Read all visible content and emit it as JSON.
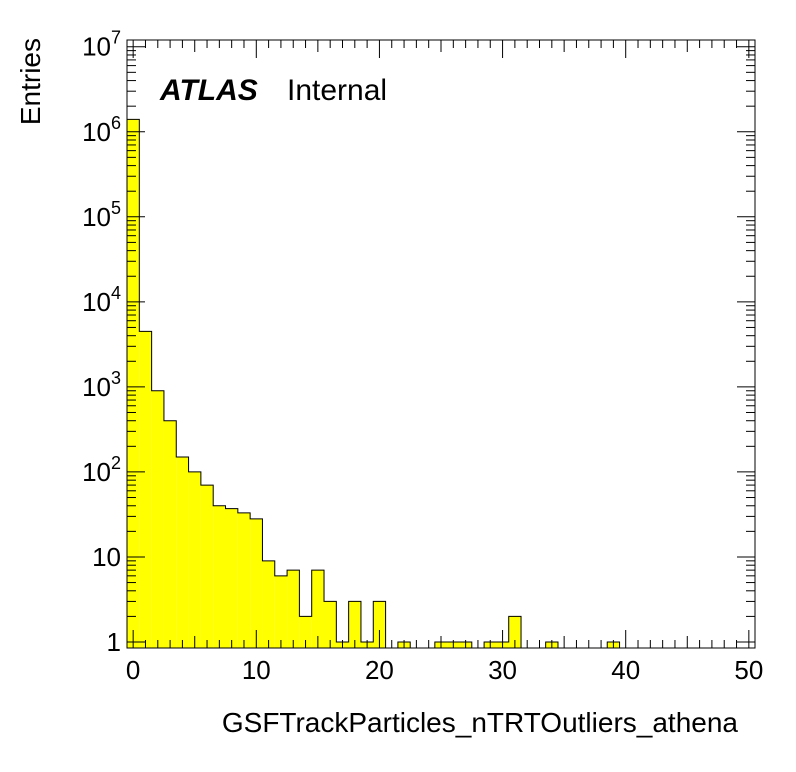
{
  "chart_data": {
    "type": "bar",
    "style": "histogram",
    "xlabel": "GSFTrackParticles_nTRTOutliers_athena",
    "ylabel": "Entries",
    "xlim": [
      -0.5,
      50.5
    ],
    "ylim": [
      0.85,
      12000000
    ],
    "y_scale": "log",
    "grid": false,
    "legend": "none",
    "fill_color": "#ffff00",
    "line_color": "#000000",
    "labels": {
      "experiment": "ATLAS",
      "status": "Internal"
    },
    "x_ticks": [
      0,
      10,
      20,
      30,
      40,
      50
    ],
    "y_ticks": [
      {
        "value": 1,
        "label": "1"
      },
      {
        "value": 10,
        "label": "10"
      },
      {
        "value": 100,
        "label": "10",
        "exp": "2"
      },
      {
        "value": 1000,
        "label": "10",
        "exp": "3"
      },
      {
        "value": 10000,
        "label": "10",
        "exp": "4"
      },
      {
        "value": 100000,
        "label": "10",
        "exp": "5"
      },
      {
        "value": 1000000,
        "label": "10",
        "exp": "6"
      },
      {
        "value": 10000000,
        "label": "10",
        "exp": "7"
      }
    ],
    "bin_width": 1,
    "bin_centers": [
      0,
      1,
      2,
      3,
      4,
      5,
      6,
      7,
      8,
      9,
      10,
      11,
      12,
      13,
      14,
      15,
      16,
      17,
      18,
      19,
      20,
      21,
      22,
      23,
      24,
      25,
      26,
      27,
      28,
      29,
      30,
      31,
      32,
      33,
      34,
      35,
      36,
      37,
      38,
      39,
      40,
      41,
      42,
      43,
      44,
      45,
      46,
      47,
      48,
      49,
      50
    ],
    "values": [
      1400000,
      4500,
      900,
      400,
      150,
      100,
      70,
      40,
      37,
      33,
      28,
      9,
      6,
      7,
      2,
      7,
      3,
      1,
      3,
      1,
      3,
      0,
      1,
      0,
      0,
      1,
      1,
      1,
      0,
      1,
      1,
      2,
      0,
      0,
      1,
      0,
      0,
      0,
      0,
      1,
      0,
      0,
      0,
      0,
      0,
      0,
      0,
      0,
      0,
      0,
      0
    ]
  }
}
